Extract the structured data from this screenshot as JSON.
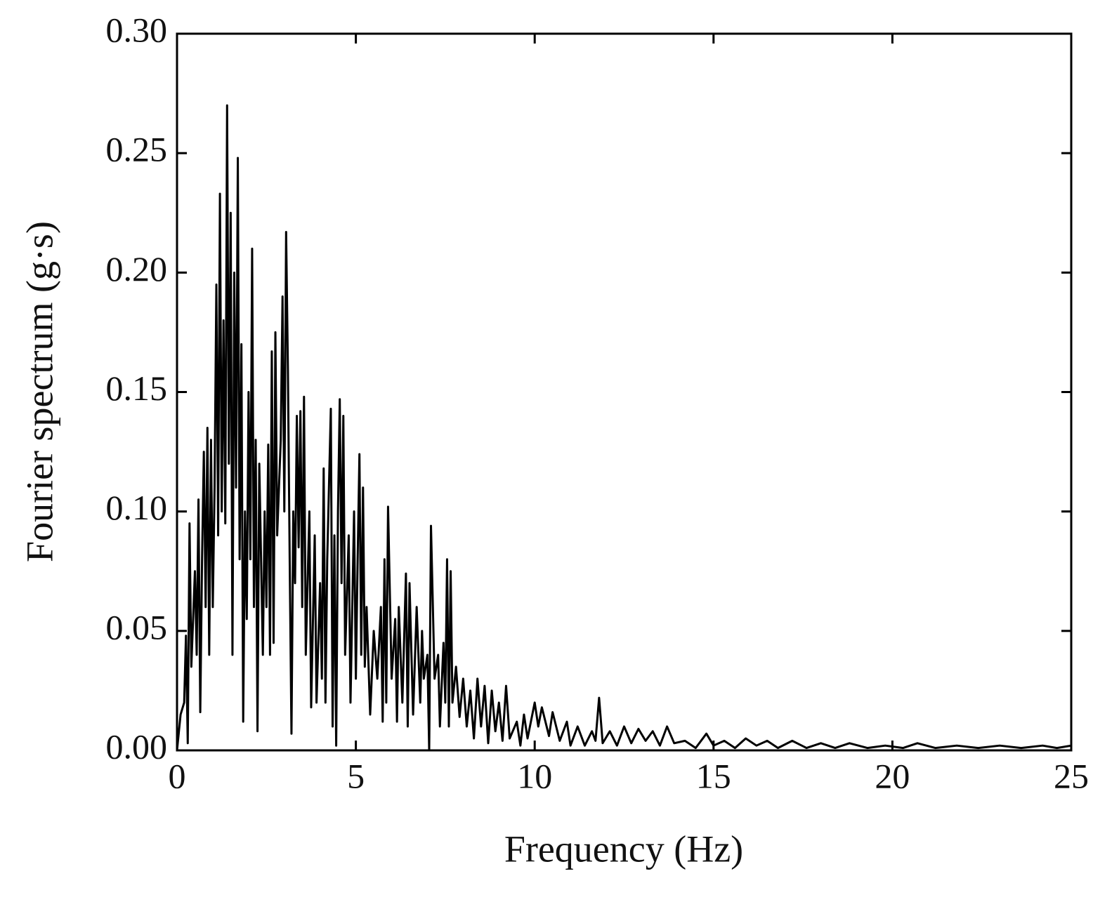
{
  "chart_data": {
    "type": "line",
    "x_label": "Frequency (Hz)",
    "y_label": "Fourier spectrum (g·s)",
    "xlim": [
      0,
      25
    ],
    "ylim": [
      0,
      0.3
    ],
    "xticks": [
      0,
      5,
      10,
      15,
      20,
      25
    ],
    "yticks": [
      {
        "value": 0,
        "label": "0.00"
      },
      {
        "value": 0.05,
        "label": "0.05"
      },
      {
        "value": 0.1,
        "label": "0.10"
      },
      {
        "value": 0.15,
        "label": "0.15"
      },
      {
        "value": 0.2,
        "label": "0.20"
      },
      {
        "value": 0.25,
        "label": "0.25"
      },
      {
        "value": 0.3,
        "label": "0.30"
      }
    ],
    "grid": false,
    "series": [
      {
        "color": "#000000",
        "x": [
          0,
          0.1,
          0.2,
          0.25,
          0.3,
          0.35,
          0.4,
          0.5,
          0.55,
          0.6,
          0.65,
          0.7,
          0.75,
          0.8,
          0.85,
          0.9,
          0.95,
          1.0,
          1.05,
          1.1,
          1.15,
          1.2,
          1.25,
          1.3,
          1.35,
          1.4,
          1.45,
          1.5,
          1.55,
          1.6,
          1.65,
          1.7,
          1.75,
          1.8,
          1.85,
          1.9,
          1.95,
          2.0,
          2.05,
          2.1,
          2.15,
          2.2,
          2.25,
          2.3,
          2.4,
          2.45,
          2.5,
          2.55,
          2.6,
          2.65,
          2.7,
          2.75,
          2.8,
          2.9,
          2.95,
          3.0,
          3.05,
          3.1,
          3.15,
          3.2,
          3.25,
          3.3,
          3.35,
          3.4,
          3.45,
          3.5,
          3.55,
          3.6,
          3.7,
          3.75,
          3.85,
          3.9,
          4.0,
          4.05,
          4.1,
          4.15,
          4.2,
          4.3,
          4.35,
          4.4,
          4.45,
          4.5,
          4.55,
          4.6,
          4.65,
          4.7,
          4.8,
          4.85,
          4.95,
          5.0,
          5.05,
          5.1,
          5.15,
          5.2,
          5.25,
          5.3,
          5.4,
          5.5,
          5.6,
          5.7,
          5.75,
          5.8,
          5.85,
          5.9,
          6.0,
          6.1,
          6.15,
          6.2,
          6.3,
          6.4,
          6.45,
          6.5,
          6.6,
          6.7,
          6.8,
          6.85,
          6.9,
          7.0,
          7.05,
          7.1,
          7.2,
          7.3,
          7.35,
          7.45,
          7.5,
          7.55,
          7.6,
          7.65,
          7.7,
          7.8,
          7.9,
          8.0,
          8.1,
          8.2,
          8.3,
          8.4,
          8.5,
          8.6,
          8.7,
          8.8,
          8.9,
          9.0,
          9.1,
          9.2,
          9.3,
          9.5,
          9.6,
          9.7,
          9.8,
          10.0,
          10.1,
          10.2,
          10.4,
          10.5,
          10.7,
          10.9,
          11.0,
          11.2,
          11.4,
          11.6,
          11.7,
          11.8,
          11.9,
          12.1,
          12.3,
          12.5,
          12.7,
          12.9,
          13.1,
          13.3,
          13.5,
          13.7,
          13.9,
          14.2,
          14.5,
          14.8,
          15.0,
          15.3,
          15.6,
          15.9,
          16.2,
          16.5,
          16.8,
          17.2,
          17.6,
          18.0,
          18.4,
          18.8,
          19.3,
          19.8,
          20.3,
          20.7,
          21.2,
          21.8,
          22.4,
          23.0,
          23.6,
          24.2,
          24.6,
          25.0
        ],
        "values": [
          0,
          0.015,
          0.02,
          0.048,
          0.003,
          0.095,
          0.035,
          0.075,
          0.04,
          0.105,
          0.016,
          0.08,
          0.125,
          0.06,
          0.135,
          0.04,
          0.13,
          0.06,
          0.11,
          0.195,
          0.09,
          0.233,
          0.1,
          0.18,
          0.095,
          0.27,
          0.12,
          0.225,
          0.04,
          0.2,
          0.11,
          0.248,
          0.08,
          0.17,
          0.012,
          0.1,
          0.055,
          0.15,
          0.08,
          0.21,
          0.06,
          0.13,
          0.008,
          0.12,
          0.04,
          0.1,
          0.06,
          0.128,
          0.04,
          0.167,
          0.045,
          0.175,
          0.09,
          0.13,
          0.19,
          0.1,
          0.217,
          0.16,
          0.08,
          0.007,
          0.1,
          0.07,
          0.14,
          0.085,
          0.142,
          0.06,
          0.148,
          0.04,
          0.1,
          0.018,
          0.09,
          0.02,
          0.07,
          0.03,
          0.118,
          0.02,
          0.08,
          0.143,
          0.01,
          0.09,
          0.002,
          0.1,
          0.147,
          0.07,
          0.14,
          0.04,
          0.09,
          0.02,
          0.1,
          0.03,
          0.08,
          0.124,
          0.04,
          0.11,
          0.035,
          0.06,
          0.015,
          0.05,
          0.03,
          0.06,
          0.012,
          0.08,
          0.02,
          0.102,
          0.03,
          0.055,
          0.012,
          0.06,
          0.02,
          0.074,
          0.01,
          0.07,
          0.015,
          0.06,
          0.02,
          0.05,
          0.03,
          0.04,
          0.0,
          0.094,
          0.03,
          0.04,
          0.01,
          0.045,
          0.02,
          0.08,
          0.01,
          0.075,
          0.02,
          0.035,
          0.014,
          0.03,
          0.01,
          0.025,
          0.005,
          0.03,
          0.01,
          0.027,
          0.003,
          0.025,
          0.008,
          0.02,
          0.004,
          0.027,
          0.005,
          0.012,
          0.002,
          0.015,
          0.005,
          0.02,
          0.01,
          0.018,
          0.006,
          0.016,
          0.004,
          0.012,
          0.002,
          0.01,
          0.002,
          0.008,
          0.004,
          0.022,
          0.003,
          0.008,
          0.002,
          0.01,
          0.003,
          0.009,
          0.004,
          0.008,
          0.002,
          0.01,
          0.003,
          0.004,
          0.001,
          0.007,
          0.002,
          0.004,
          0.001,
          0.005,
          0.002,
          0.004,
          0.001,
          0.004,
          0.001,
          0.003,
          0.001,
          0.003,
          0.001,
          0.002,
          0.001,
          0.003,
          0.001,
          0.002,
          0.001,
          0.002,
          0.001,
          0.002,
          0.001,
          0.002
        ]
      }
    ]
  }
}
